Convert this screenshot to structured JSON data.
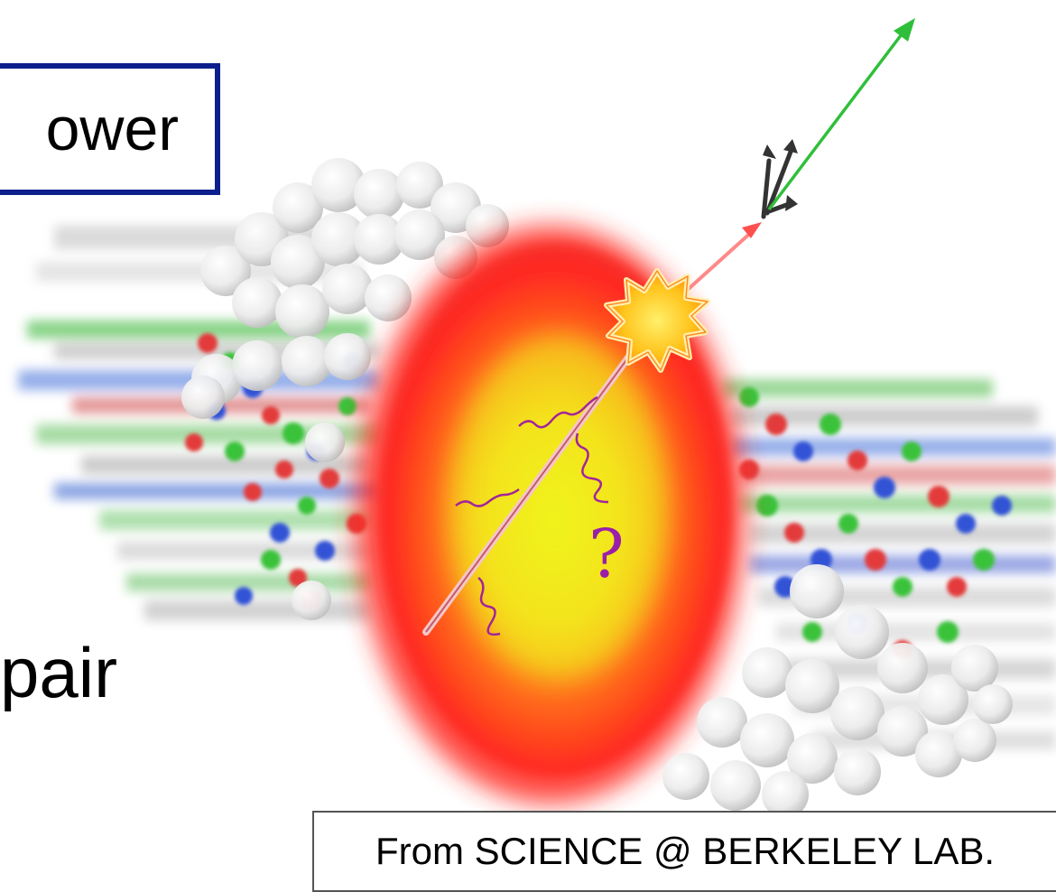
{
  "labels": {
    "top_box_text": "ower",
    "bottom_text": "pair",
    "credit": "From SCIENCE @ BERKELEY LAB.",
    "question_mark": "?"
  },
  "colors": {
    "frame_blue": "#0d1f8c",
    "fireball_red": "#ff2a20",
    "fireball_yellow": "#f6f21a",
    "jet_green": "#2fbf3a",
    "jet_red": "#ff6060",
    "gluon_purple": "#9a1fa8",
    "nucleon_white": "#f0f0f0"
  },
  "icons": {
    "flash": "starburst-icon",
    "jet_arrow": "arrow-icon"
  }
}
